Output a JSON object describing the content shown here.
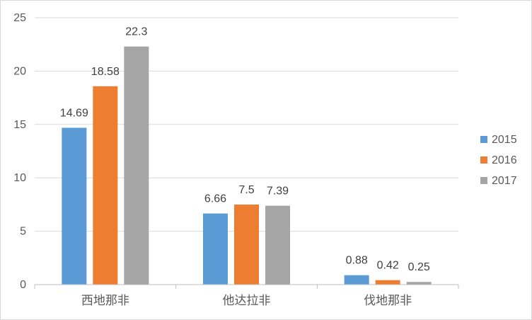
{
  "chart_data": {
    "type": "bar",
    "title": "",
    "xlabel": "",
    "ylabel": "",
    "categories": [
      "西地那非",
      "他达拉非",
      "伐地那非"
    ],
    "series": [
      {
        "name": "2015",
        "color": "#5b9bd5",
        "values": [
          14.69,
          6.66,
          0.88
        ]
      },
      {
        "name": "2016",
        "color": "#ed7d31",
        "values": [
          18.58,
          7.5,
          0.42
        ]
      },
      {
        "name": "2017",
        "color": "#a5a5a5",
        "values": [
          22.3,
          7.39,
          0.25
        ]
      }
    ],
    "data_labels": [
      [
        "14.69",
        "6.66",
        "0.88"
      ],
      [
        "18.58",
        "7.5",
        "0.42"
      ],
      [
        "22.3",
        "7.39",
        "0.25"
      ]
    ],
    "ylim": [
      0,
      25
    ],
    "yticks": [
      "0",
      "5",
      "10",
      "15",
      "20",
      "25"
    ],
    "grid": true,
    "legend_position": "right"
  }
}
